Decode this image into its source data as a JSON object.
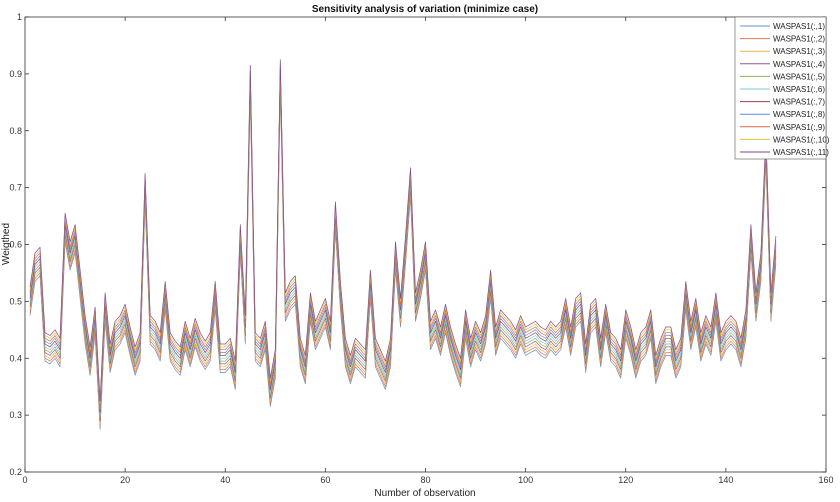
{
  "chart_data": {
    "type": "line",
    "title": "Sensitivity analysis of variation (minimize case)",
    "xlabel": "Number of observation",
    "ylabel": "Weigthed",
    "xlim": [
      0,
      160
    ],
    "ylim": [
      0.2,
      1.0
    ],
    "xticks": [
      "0",
      "20",
      "40",
      "60",
      "80",
      "100",
      "120",
      "140",
      "160"
    ],
    "yticks": [
      "0.2",
      "0.3",
      "0.4",
      "0.5",
      "0.6",
      "0.7",
      "0.8",
      "0.9",
      "1"
    ],
    "grid": false,
    "legend_position": "top-right",
    "base_series": [
      [
        1,
        0.49
      ],
      [
        2,
        0.55
      ],
      [
        3,
        0.56
      ],
      [
        4,
        0.41
      ],
      [
        5,
        0.405
      ],
      [
        6,
        0.415
      ],
      [
        7,
        0.4
      ],
      [
        8,
        0.62
      ],
      [
        9,
        0.57
      ],
      [
        10,
        0.6
      ],
      [
        11,
        0.52
      ],
      [
        12,
        0.44
      ],
      [
        13,
        0.385
      ],
      [
        14,
        0.455
      ],
      [
        15,
        0.29
      ],
      [
        16,
        0.48
      ],
      [
        17,
        0.39
      ],
      [
        18,
        0.43
      ],
      [
        19,
        0.44
      ],
      [
        20,
        0.46
      ],
      [
        21,
        0.42
      ],
      [
        22,
        0.385
      ],
      [
        23,
        0.41
      ],
      [
        24,
        0.69
      ],
      [
        25,
        0.44
      ],
      [
        26,
        0.43
      ],
      [
        27,
        0.41
      ],
      [
        28,
        0.5
      ],
      [
        29,
        0.41
      ],
      [
        30,
        0.395
      ],
      [
        31,
        0.385
      ],
      [
        32,
        0.43
      ],
      [
        33,
        0.4
      ],
      [
        34,
        0.435
      ],
      [
        35,
        0.41
      ],
      [
        36,
        0.395
      ],
      [
        37,
        0.41
      ],
      [
        38,
        0.5
      ],
      [
        39,
        0.39
      ],
      [
        40,
        0.39
      ],
      [
        41,
        0.4
      ],
      [
        42,
        0.36
      ],
      [
        43,
        0.6
      ],
      [
        44,
        0.44
      ],
      [
        45,
        0.88
      ],
      [
        46,
        0.41
      ],
      [
        47,
        0.4
      ],
      [
        48,
        0.43
      ],
      [
        49,
        0.33
      ],
      [
        50,
        0.38
      ],
      [
        51,
        0.89
      ],
      [
        52,
        0.48
      ],
      [
        53,
        0.5
      ],
      [
        54,
        0.51
      ],
      [
        55,
        0.4
      ],
      [
        56,
        0.37
      ],
      [
        57,
        0.48
      ],
      [
        58,
        0.43
      ],
      [
        59,
        0.45
      ],
      [
        60,
        0.47
      ],
      [
        61,
        0.43
      ],
      [
        62,
        0.64
      ],
      [
        63,
        0.5
      ],
      [
        64,
        0.4
      ],
      [
        65,
        0.37
      ],
      [
        66,
        0.4
      ],
      [
        67,
        0.39
      ],
      [
        68,
        0.38
      ],
      [
        69,
        0.52
      ],
      [
        70,
        0.4
      ],
      [
        71,
        0.38
      ],
      [
        72,
        0.36
      ],
      [
        73,
        0.4
      ],
      [
        74,
        0.57
      ],
      [
        75,
        0.47
      ],
      [
        76,
        0.58
      ],
      [
        77,
        0.7
      ],
      [
        78,
        0.48
      ],
      [
        79,
        0.52
      ],
      [
        80,
        0.57
      ],
      [
        81,
        0.43
      ],
      [
        82,
        0.45
      ],
      [
        83,
        0.42
      ],
      [
        84,
        0.46
      ],
      [
        85,
        0.42
      ],
      [
        86,
        0.39
      ],
      [
        87,
        0.365
      ],
      [
        88,
        0.45
      ],
      [
        89,
        0.4
      ],
      [
        90,
        0.43
      ],
      [
        91,
        0.41
      ],
      [
        92,
        0.44
      ],
      [
        93,
        0.52
      ],
      [
        94,
        0.42
      ],
      [
        95,
        0.45
      ],
      [
        96,
        0.44
      ],
      [
        97,
        0.43
      ],
      [
        98,
        0.415
      ],
      [
        99,
        0.44
      ],
      [
        100,
        0.42
      ],
      [
        101,
        0.425
      ],
      [
        102,
        0.43
      ],
      [
        103,
        0.42
      ],
      [
        104,
        0.415
      ],
      [
        105,
        0.43
      ],
      [
        106,
        0.42
      ],
      [
        107,
        0.43
      ],
      [
        108,
        0.47
      ],
      [
        109,
        0.42
      ],
      [
        110,
        0.47
      ],
      [
        111,
        0.48
      ],
      [
        112,
        0.39
      ],
      [
        113,
        0.46
      ],
      [
        114,
        0.47
      ],
      [
        115,
        0.4
      ],
      [
        116,
        0.46
      ],
      [
        117,
        0.41
      ],
      [
        118,
        0.4
      ],
      [
        119,
        0.38
      ],
      [
        120,
        0.45
      ],
      [
        121,
        0.42
      ],
      [
        122,
        0.38
      ],
      [
        123,
        0.41
      ],
      [
        124,
        0.42
      ],
      [
        125,
        0.45
      ],
      [
        126,
        0.37
      ],
      [
        127,
        0.4
      ],
      [
        128,
        0.42
      ],
      [
        129,
        0.42
      ],
      [
        130,
        0.38
      ],
      [
        131,
        0.4
      ],
      [
        132,
        0.5
      ],
      [
        133,
        0.43
      ],
      [
        134,
        0.47
      ],
      [
        135,
        0.41
      ],
      [
        136,
        0.44
      ],
      [
        137,
        0.42
      ],
      [
        138,
        0.48
      ],
      [
        139,
        0.41
      ],
      [
        140,
        0.43
      ],
      [
        141,
        0.44
      ],
      [
        142,
        0.43
      ],
      [
        143,
        0.4
      ],
      [
        144,
        0.45
      ],
      [
        145,
        0.6
      ],
      [
        146,
        0.48
      ],
      [
        147,
        0.55
      ],
      [
        148,
        0.76
      ],
      [
        149,
        0.48
      ],
      [
        150,
        0.58
      ]
    ],
    "series": [
      {
        "name": "WASPAS1(:,1)",
        "color": "#6a8fc7",
        "offset": -0.015
      },
      {
        "name": "WASPAS1(:,2)",
        "color": "#de7b54",
        "offset": -0.01
      },
      {
        "name": "WASPAS1(:,3)",
        "color": "#e8b84a",
        "offset": -0.005
      },
      {
        "name": "WASPAS1(:,4)",
        "color": "#8e5b9e",
        "offset": 0.0
      },
      {
        "name": "WASPAS1(:,5)",
        "color": "#8cb35a",
        "offset": 0.005
      },
      {
        "name": "WASPAS1(:,6)",
        "color": "#7ec8e3",
        "offset": 0.01
      },
      {
        "name": "WASPAS1(:,7)",
        "color": "#a23b4c",
        "offset": 0.015
      },
      {
        "name": "WASPAS1(:,8)",
        "color": "#5a8fd6",
        "offset": 0.02
      },
      {
        "name": "WASPAS1(:,9)",
        "color": "#e0664f",
        "offset": 0.025
      },
      {
        "name": "WASPAS1(:,10)",
        "color": "#e6bf3f",
        "offset": 0.03
      },
      {
        "name": "WASPAS1(:,11)",
        "color": "#7d4b90",
        "offset": 0.035
      }
    ]
  }
}
